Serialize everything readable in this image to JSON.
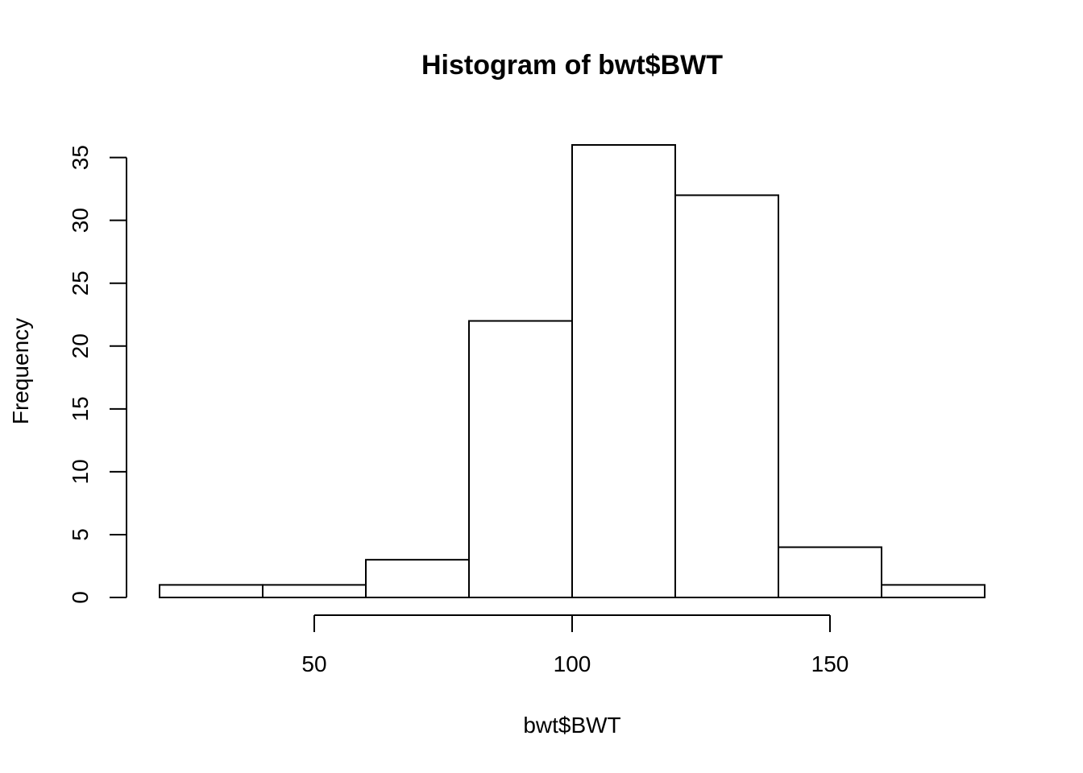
{
  "chart_data": {
    "type": "bar",
    "title": "Histogram of bwt$BWT",
    "xlabel": "bwt$BWT",
    "ylabel": "Frequency",
    "bin_edges": [
      20,
      40,
      60,
      80,
      100,
      120,
      140,
      160,
      180
    ],
    "values": [
      1,
      1,
      3,
      22,
      36,
      32,
      4,
      1
    ],
    "xlim": [
      20,
      180
    ],
    "ylim": [
      0,
      36
    ],
    "x_ticks": [
      50,
      100,
      150
    ],
    "y_ticks": [
      0,
      5,
      10,
      15,
      20,
      25,
      30,
      35
    ],
    "grid": false,
    "legend": "none"
  }
}
